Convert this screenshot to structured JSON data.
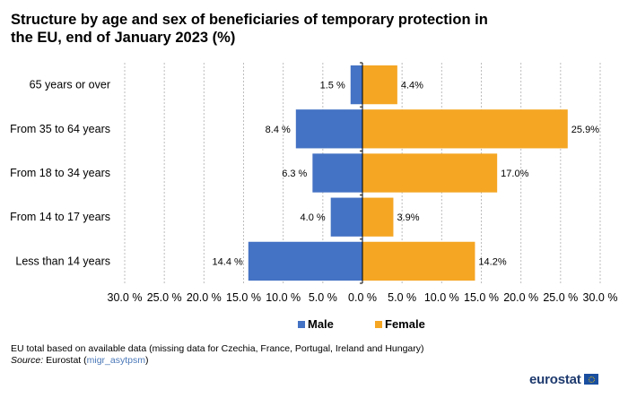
{
  "chart_data": {
    "type": "bar",
    "orientation": "horizontal-diverging",
    "title": "Structure by age and sex of beneficiaries of temporary protection in the EU, end of January 2023 (%)",
    "categories": [
      "65 years or over",
      "From 35 to 64 years",
      "From 18 to 34 years",
      "From 14 to 17 years",
      "Less than 14 years"
    ],
    "series": [
      {
        "name": "Male",
        "color": "#4472c4",
        "values": [
          1.5,
          8.4,
          6.3,
          4.0,
          14.4
        ],
        "labels": [
          "1.5 %",
          "8.4 %",
          "6.3 %",
          "4.0 %",
          "14.4 %"
        ]
      },
      {
        "name": "Female",
        "color": "#f5a623",
        "values": [
          4.4,
          25.9,
          17.0,
          3.9,
          14.2
        ],
        "labels": [
          "4.4%",
          "25.9%",
          "17.0%",
          "3.9%",
          "14.2%"
        ]
      }
    ],
    "xlim": [
      -30,
      30
    ],
    "x_ticks": [
      -30,
      -25,
      -20,
      -15,
      -10,
      -5,
      0,
      5,
      10,
      15,
      20,
      25,
      30
    ],
    "x_tick_labels": [
      "30.0 %",
      "25.0 %",
      "20.0 %",
      "15.0 %",
      "10.0 %",
      "5.0 %",
      "0.0 %",
      "5.0 %",
      "10.0 %",
      "15.0 %",
      "20.0 %",
      "25.0 %",
      "30.0 %"
    ],
    "grid": true,
    "legend_position": "bottom"
  },
  "footer": {
    "note": "EU total based on available data (missing data for Czechia, France, Portugal, Ireland and Hungary)",
    "source_label": "Source:",
    "source_text": " Eurostat (",
    "source_code": "migr_asytpsm",
    "source_close": ")"
  },
  "logo": {
    "text": "eurostat"
  }
}
